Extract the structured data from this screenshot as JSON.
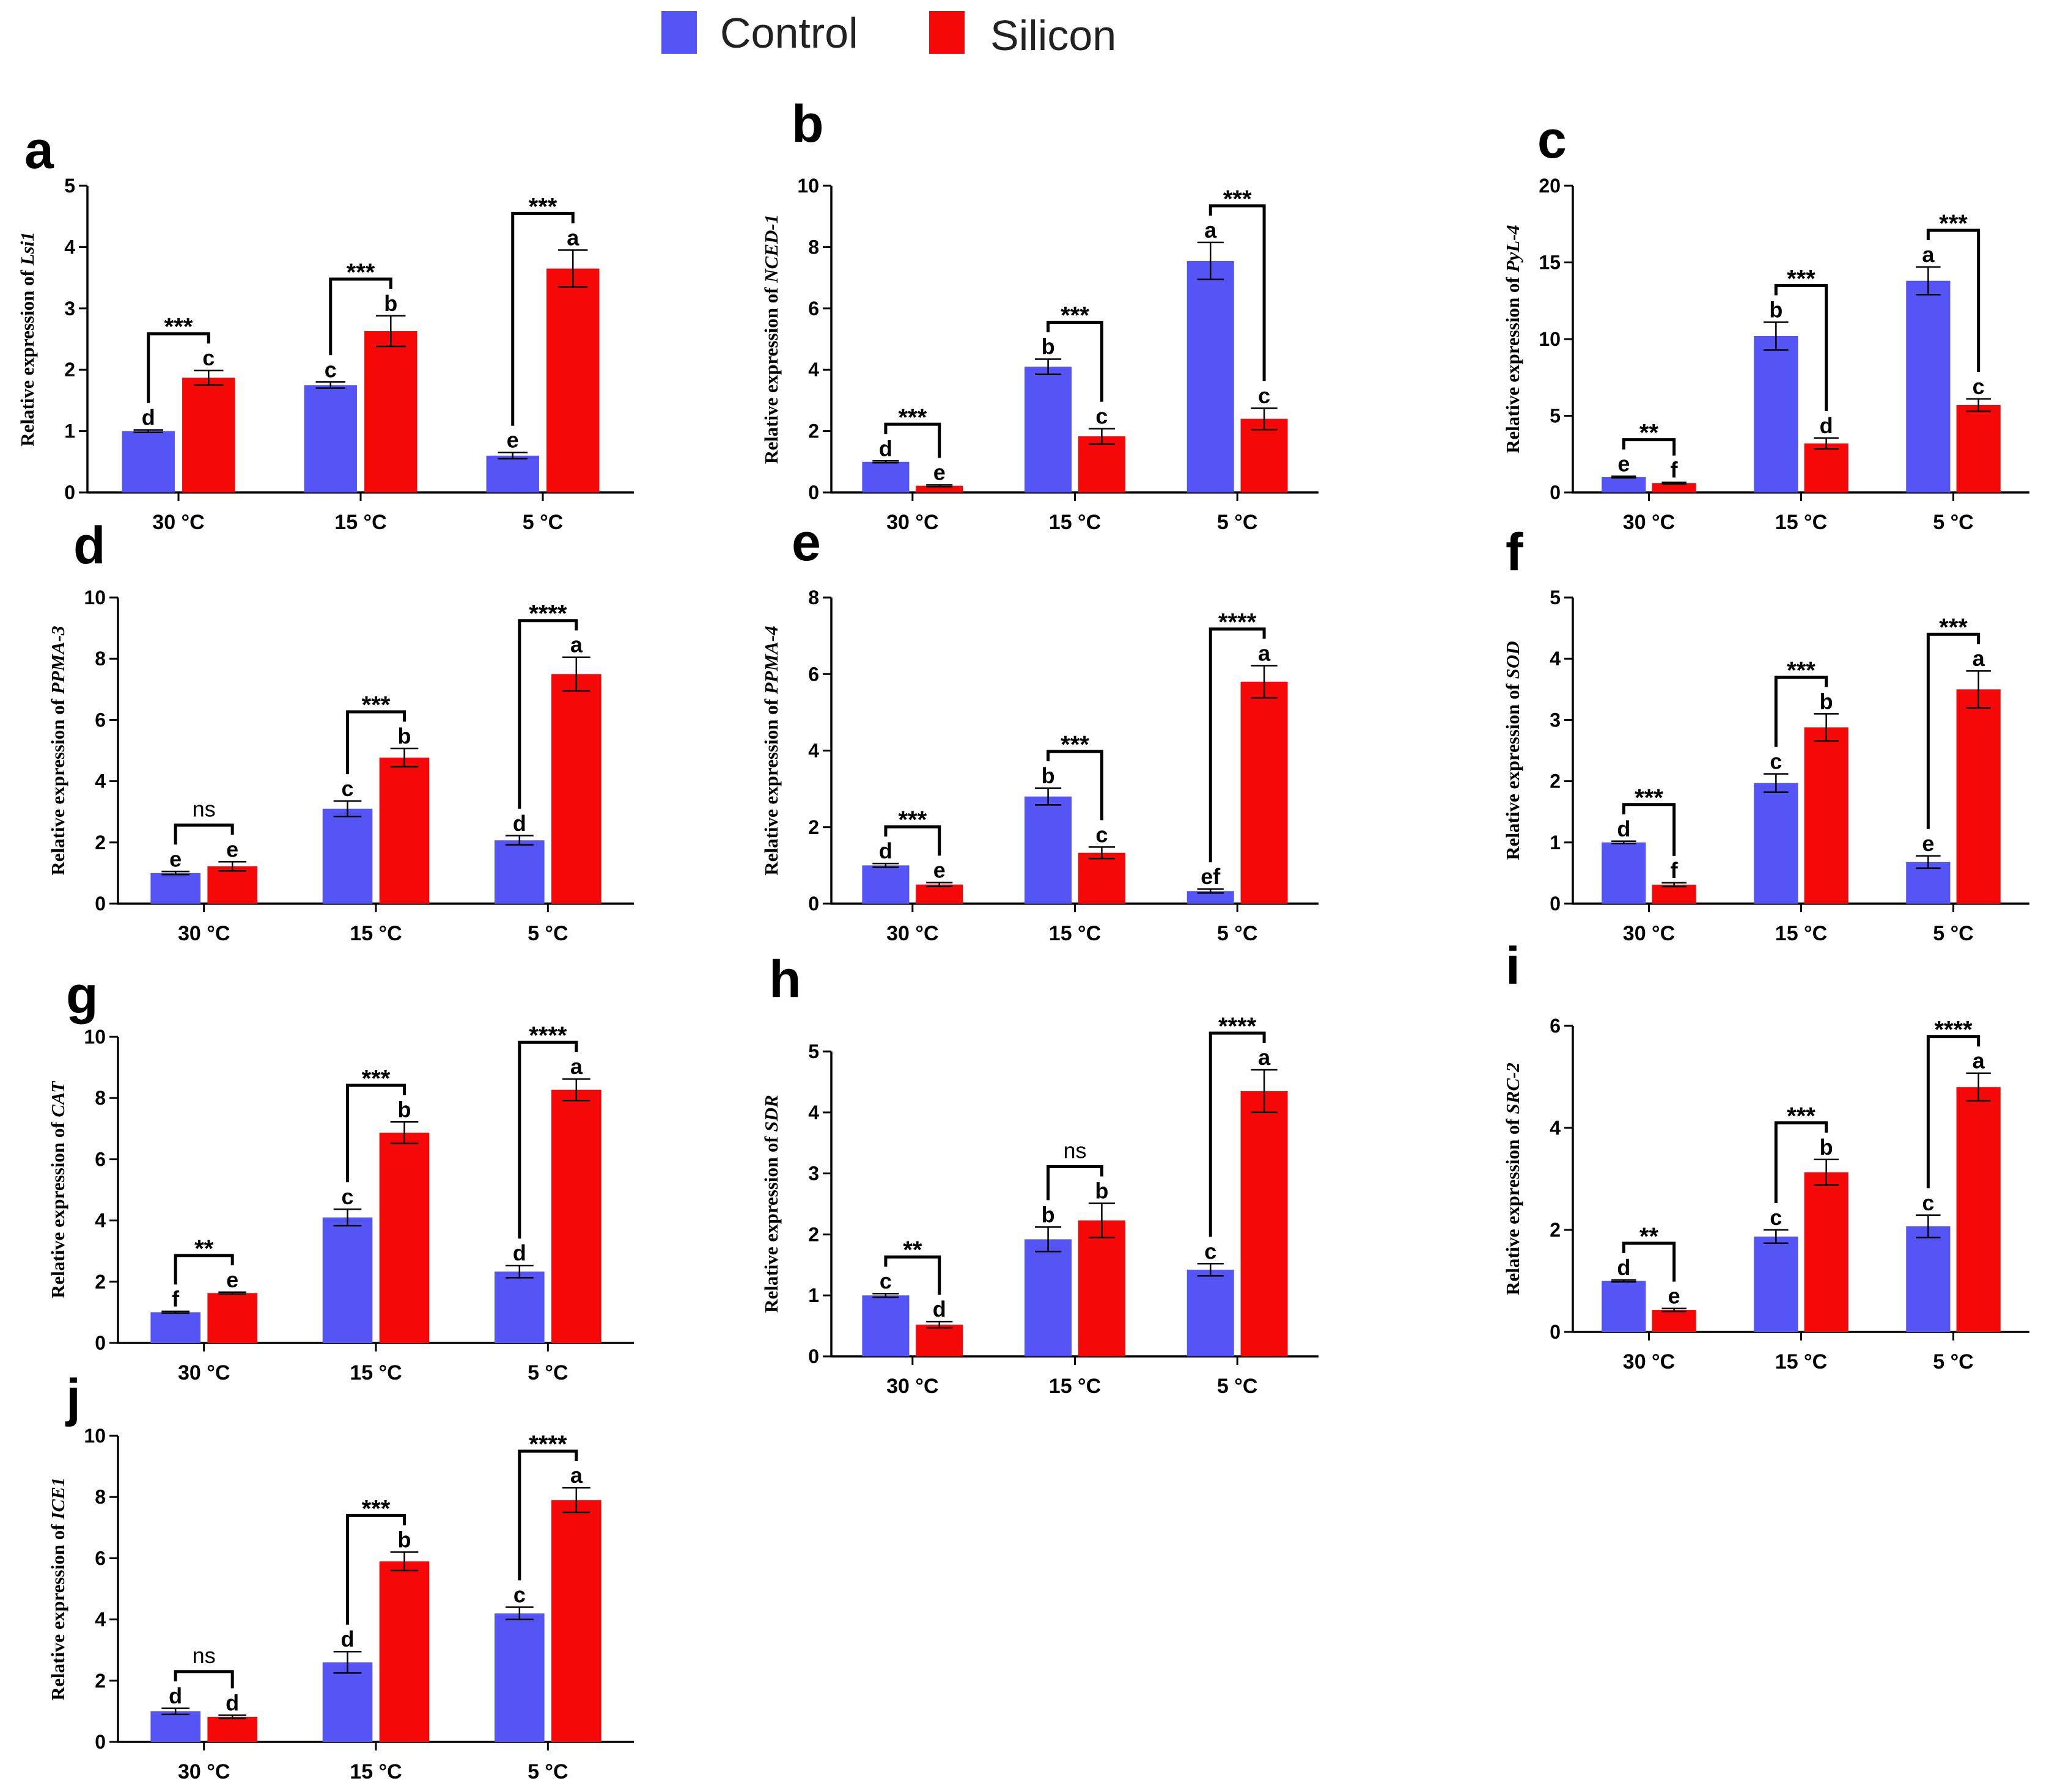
{
  "legend": {
    "entries": [
      {
        "name": "Control",
        "color": "#5555f5"
      },
      {
        "name": "Silicon",
        "color": "#f50808"
      }
    ]
  },
  "chart_data": [
    {
      "panel": "a",
      "type": "bar",
      "ylabel_prefix": "Relative expression of ",
      "gene": "Lsi1",
      "categories": [
        "30 °C",
        "15 °C",
        "5 °C"
      ],
      "ylim": [
        0,
        5
      ],
      "yticks": [
        0,
        1,
        2,
        3,
        4,
        5
      ],
      "series": [
        {
          "name": "Control",
          "values": [
            1.0,
            1.75,
            0.6
          ],
          "errors": [
            0.02,
            0.05,
            0.05
          ],
          "letters": [
            "d",
            "c",
            "e"
          ]
        },
        {
          "name": "Silicon",
          "values": [
            1.87,
            2.63,
            3.65
          ],
          "errors": [
            0.12,
            0.25,
            0.3
          ],
          "letters": [
            "c",
            "b",
            "a"
          ]
        }
      ],
      "significance": [
        "***",
        "***",
        "***"
      ]
    },
    {
      "panel": "b",
      "type": "bar",
      "ylabel_prefix": "Relative expression of ",
      "gene": "NCED-1",
      "categories": [
        "30 °C",
        "15 °C",
        "5 °C"
      ],
      "ylim": [
        0,
        10
      ],
      "yticks": [
        0,
        2,
        4,
        6,
        8,
        10
      ],
      "series": [
        {
          "name": "Control",
          "values": [
            1.0,
            4.1,
            7.55
          ],
          "errors": [
            0.03,
            0.25,
            0.6
          ],
          "letters": [
            "d",
            "b",
            "a"
          ]
        },
        {
          "name": "Silicon",
          "values": [
            0.22,
            1.83,
            2.4
          ],
          "errors": [
            0.03,
            0.25,
            0.35
          ],
          "letters": [
            "e",
            "c",
            "c"
          ]
        }
      ],
      "significance": [
        "***",
        "***",
        "***"
      ]
    },
    {
      "panel": "c",
      "type": "bar",
      "ylabel_prefix": "Relative expression of ",
      "gene": "PyL-4",
      "categories": [
        "30 °C",
        "15 °C",
        "5 °C"
      ],
      "ylim": [
        0,
        20
      ],
      "yticks": [
        0,
        5,
        10,
        15,
        20
      ],
      "series": [
        {
          "name": "Control",
          "values": [
            1.0,
            10.2,
            13.8
          ],
          "errors": [
            0.05,
            0.9,
            0.9
          ],
          "letters": [
            "e",
            "b",
            "a"
          ]
        },
        {
          "name": "Silicon",
          "values": [
            0.6,
            3.2,
            5.7
          ],
          "errors": [
            0.05,
            0.35,
            0.4
          ],
          "letters": [
            "f",
            "d",
            "c"
          ]
        }
      ],
      "significance": [
        "**",
        "***",
        "***"
      ]
    },
    {
      "panel": "d",
      "type": "bar",
      "ylabel_prefix": "Relative expression of ",
      "gene": "PPMA-3",
      "categories": [
        "30 °C",
        "15 °C",
        "5 °C"
      ],
      "ylim": [
        0,
        10
      ],
      "yticks": [
        0,
        2,
        4,
        6,
        8,
        10
      ],
      "series": [
        {
          "name": "Control",
          "values": [
            1.0,
            3.1,
            2.07
          ],
          "errors": [
            0.05,
            0.25,
            0.15
          ],
          "letters": [
            "e",
            "c",
            "d"
          ]
        },
        {
          "name": "Silicon",
          "values": [
            1.22,
            4.77,
            7.5
          ],
          "errors": [
            0.15,
            0.3,
            0.55
          ],
          "letters": [
            "e",
            "b",
            "a"
          ]
        }
      ],
      "significance": [
        "ns",
        "***",
        "****"
      ]
    },
    {
      "panel": "e",
      "type": "bar",
      "ylabel_prefix": "Relative expression of ",
      "gene": "PPMA-4",
      "categories": [
        "30 °C",
        "15 °C",
        "5 °C"
      ],
      "ylim": [
        0,
        8
      ],
      "yticks": [
        0,
        2,
        4,
        6,
        8
      ],
      "series": [
        {
          "name": "Control",
          "values": [
            1.0,
            2.8,
            0.33
          ],
          "errors": [
            0.05,
            0.22,
            0.05
          ],
          "letters": [
            "d",
            "b",
            "ef"
          ]
        },
        {
          "name": "Silicon",
          "values": [
            0.5,
            1.33,
            5.8
          ],
          "errors": [
            0.05,
            0.15,
            0.42
          ],
          "letters": [
            "e",
            "c",
            "a"
          ]
        }
      ],
      "significance": [
        "***",
        "***",
        "****"
      ]
    },
    {
      "panel": "f",
      "type": "bar",
      "ylabel_prefix": "Relative expression of ",
      "gene": "SOD",
      "categories": [
        "30 °C",
        "15 °C",
        "5 °C"
      ],
      "ylim": [
        0,
        5
      ],
      "yticks": [
        0,
        1,
        2,
        3,
        4,
        5
      ],
      "series": [
        {
          "name": "Control",
          "values": [
            1.0,
            1.97,
            0.68
          ],
          "errors": [
            0.02,
            0.15,
            0.1
          ],
          "letters": [
            "d",
            "c",
            "e"
          ]
        },
        {
          "name": "Silicon",
          "values": [
            0.31,
            2.88,
            3.5
          ],
          "errors": [
            0.03,
            0.22,
            0.3
          ],
          "letters": [
            "f",
            "b",
            "a"
          ]
        }
      ],
      "significance": [
        "***",
        "***",
        "***"
      ]
    },
    {
      "panel": "g",
      "type": "bar",
      "ylabel_prefix": "Relative expression of ",
      "gene": "CAT",
      "categories": [
        "30 °C",
        "15 °C",
        "5 °C"
      ],
      "ylim": [
        0,
        10
      ],
      "yticks": [
        0,
        2,
        4,
        6,
        8,
        10
      ],
      "series": [
        {
          "name": "Control",
          "values": [
            1.0,
            4.1,
            2.33
          ],
          "errors": [
            0.03,
            0.27,
            0.2
          ],
          "letters": [
            "f",
            "c",
            "d"
          ]
        },
        {
          "name": "Silicon",
          "values": [
            1.63,
            6.87,
            8.27
          ],
          "errors": [
            0.03,
            0.35,
            0.35
          ],
          "letters": [
            "e",
            "b",
            "a"
          ]
        }
      ],
      "significance": [
        "**",
        "***",
        "****"
      ]
    },
    {
      "panel": "h",
      "type": "bar",
      "ylabel_prefix": "Relative expression of ",
      "gene": "SDR",
      "categories": [
        "30 °C",
        "15 °C",
        "5 °C"
      ],
      "ylim": [
        0,
        5
      ],
      "yticks": [
        0,
        1,
        2,
        3,
        4,
        5
      ],
      "series": [
        {
          "name": "Control",
          "values": [
            1.0,
            1.92,
            1.42
          ],
          "errors": [
            0.03,
            0.2,
            0.1
          ],
          "letters": [
            "c",
            "b",
            "c"
          ]
        },
        {
          "name": "Silicon",
          "values": [
            0.52,
            2.23,
            4.35
          ],
          "errors": [
            0.05,
            0.28,
            0.35
          ],
          "letters": [
            "d",
            "b",
            "a"
          ]
        }
      ],
      "significance": [
        "**",
        "ns",
        "****"
      ]
    },
    {
      "panel": "i",
      "type": "bar",
      "ylabel_prefix": "Relative expression of ",
      "gene": "SRC-2",
      "categories": [
        "30 °C",
        "15 °C",
        "5 °C"
      ],
      "ylim": [
        0,
        6
      ],
      "yticks": [
        0,
        2,
        4,
        6
      ],
      "series": [
        {
          "name": "Control",
          "values": [
            1.0,
            1.87,
            2.07
          ],
          "errors": [
            0.02,
            0.13,
            0.22
          ],
          "letters": [
            "d",
            "c",
            "c"
          ]
        },
        {
          "name": "Silicon",
          "values": [
            0.43,
            3.13,
            4.8
          ],
          "errors": [
            0.03,
            0.25,
            0.27
          ],
          "letters": [
            "e",
            "b",
            "a"
          ]
        }
      ],
      "significance": [
        "**",
        "***",
        "****"
      ]
    },
    {
      "panel": "j",
      "type": "bar",
      "ylabel_prefix": "Relative expression of ",
      "gene": "ICE1",
      "categories": [
        "30 °C",
        "15 °C",
        "5 °C"
      ],
      "ylim": [
        0,
        10
      ],
      "yticks": [
        0,
        2,
        4,
        6,
        8,
        10
      ],
      "series": [
        {
          "name": "Control",
          "values": [
            1.0,
            2.6,
            4.2
          ],
          "errors": [
            0.1,
            0.35,
            0.2
          ],
          "letters": [
            "d",
            "d",
            "c"
          ]
        },
        {
          "name": "Silicon",
          "values": [
            0.82,
            5.9,
            7.9
          ],
          "errors": [
            0.05,
            0.3,
            0.4
          ],
          "letters": [
            "d",
            "b",
            "a"
          ]
        }
      ],
      "significance": [
        "ns",
        "***",
        "****"
      ]
    }
  ]
}
